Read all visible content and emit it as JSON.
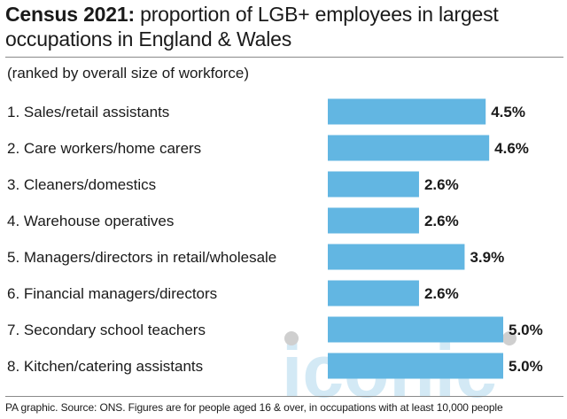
{
  "header": {
    "title_bold": "Census 2021:",
    "title_rest": " proportion of LGB+ employees in largest occupations in England & Wales",
    "subtitle": "(ranked by overall size of workforce)"
  },
  "footer": {
    "source": "PA graphic. Source: ONS. Figures are for people aged 16 & over, in occupations with at least 10,000 people"
  },
  "watermark": "iconic",
  "colors": {
    "bar": "#62b6e2",
    "text": "#1a1a1a",
    "watermark": "#b7dcef"
  },
  "chart_data": {
    "type": "bar",
    "orientation": "horizontal",
    "title": "Census 2021: proportion of LGB+ employees in largest occupations in England & Wales",
    "subtitle": "(ranked by overall size of workforce)",
    "categories": [
      "1. Sales/retail assistants",
      "2. Care workers/home carers",
      "3. Cleaners/domestics",
      "4. Warehouse operatives",
      "5. Managers/directors in retail/wholesale",
      "6. Financial managers/directors",
      "7. Secondary school teachers",
      "8. Kitchen/catering assistants"
    ],
    "values": [
      4.5,
      4.6,
      2.6,
      2.6,
      3.9,
      2.6,
      5.0,
      5.0
    ],
    "value_labels": [
      "4.5%",
      "4.6%",
      "2.6%",
      "2.6%",
      "3.9%",
      "2.6%",
      "5.0%",
      "5.0%"
    ],
    "unit": "%",
    "xlim": [
      0,
      5.0
    ],
    "grid": false,
    "legend": "none"
  }
}
